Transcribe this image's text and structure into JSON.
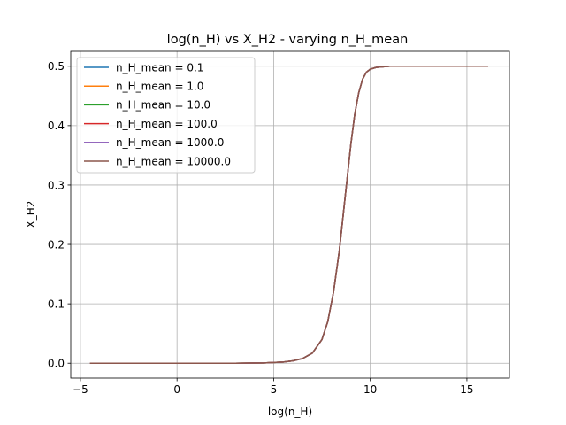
{
  "chart_data": {
    "type": "line",
    "title": "log(n_H) vs X_H2 - varying n_H_mean",
    "xlabel": "log(n_H)",
    "ylabel": "X_H2",
    "xlim": [
      -5.5,
      17.2
    ],
    "ylim": [
      -0.025,
      0.525
    ],
    "xticks": [
      -5,
      0,
      5,
      10,
      15
    ],
    "yticks": [
      0.0,
      0.1,
      0.2,
      0.3,
      0.4,
      0.5
    ],
    "xtick_labels": [
      "−5",
      "0",
      "5",
      "10",
      "15"
    ],
    "ytick_labels": [
      "0.0",
      "0.1",
      "0.2",
      "0.3",
      "0.4",
      "0.5"
    ],
    "grid": true,
    "legend_position": "top-left",
    "x": [
      -4.5,
      -3,
      -1,
      1,
      3,
      4.5,
      5.5,
      6.0,
      6.5,
      7.0,
      7.5,
      7.8,
      8.1,
      8.4,
      8.6,
      8.8,
      9.0,
      9.2,
      9.4,
      9.6,
      9.8,
      10.0,
      10.3,
      10.6,
      11.0,
      12,
      13,
      14,
      15,
      16.1
    ],
    "y_common": [
      0,
      0,
      0,
      0,
      0,
      0.0005,
      0.002,
      0.004,
      0.008,
      0.017,
      0.04,
      0.07,
      0.12,
      0.19,
      0.25,
      0.31,
      0.37,
      0.42,
      0.455,
      0.478,
      0.49,
      0.495,
      0.498,
      0.499,
      0.5,
      0.5,
      0.5,
      0.5,
      0.5,
      0.5
    ],
    "series": [
      {
        "name": "n_H_mean = 0.1",
        "color": "#1f77b4"
      },
      {
        "name": "n_H_mean = 1.0",
        "color": "#ff7f0e"
      },
      {
        "name": "n_H_mean = 10.0",
        "color": "#2ca02c"
      },
      {
        "name": "n_H_mean = 100.0",
        "color": "#d62728"
      },
      {
        "name": "n_H_mean = 1000.0",
        "color": "#9467bd"
      },
      {
        "name": "n_H_mean = 10000.0",
        "color": "#8c564b"
      }
    ]
  }
}
